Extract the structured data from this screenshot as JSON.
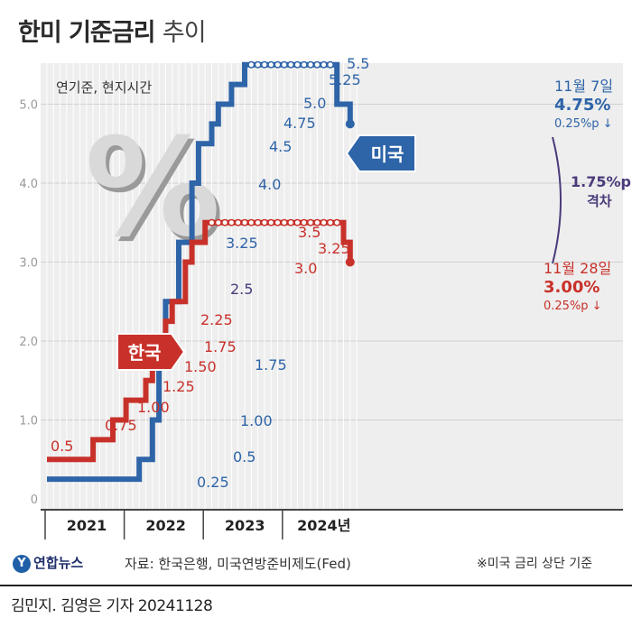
{
  "title": {
    "main": "한미 기준금리",
    "sub": "추이"
  },
  "credit": "김민지. 김영은 기자  20241128",
  "logo_text": "연합뉴스",
  "source": "자료: 한국은행, 미국연방준비제도(Fed)",
  "note": "※미국 금리 상단 기준",
  "colors": {
    "us": "#2e64a8",
    "korea": "#c8312a",
    "gap": "#4a3a7a",
    "grid": "#cfcfcf"
  },
  "chart_data": {
    "type": "line",
    "step": true,
    "unit_label": "연기준, 현지시간",
    "x_labels": [
      "2021",
      "2022",
      "2023",
      "2024년"
    ],
    "ylim": [
      0,
      5.5
    ],
    "yticks": [
      0,
      1.0,
      2.0,
      3.0,
      4.0,
      5.0
    ],
    "ytick_labels": [
      "0",
      "1.0",
      "2.0",
      "3.0",
      "4.0",
      "5.0"
    ],
    "series": [
      {
        "key": "us",
        "name": "미국",
        "points": [
          [
            "2021-01",
            0.25
          ],
          [
            "2022-03",
            0.5
          ],
          [
            "2022-05",
            1.0
          ],
          [
            "2022-06",
            1.75
          ],
          [
            "2022-07",
            2.5
          ],
          [
            "2022-09",
            3.25
          ],
          [
            "2022-11",
            4.0
          ],
          [
            "2022-12",
            4.5
          ],
          [
            "2023-02",
            4.75
          ],
          [
            "2023-03",
            5.0
          ],
          [
            "2023-05",
            5.25
          ],
          [
            "2023-07",
            5.5
          ],
          [
            "2024-09",
            5.0
          ],
          [
            "2024-11",
            4.75
          ]
        ],
        "labels": [
          "0.25",
          "0.5",
          "1.00",
          "1.75",
          "2.5",
          "3.25",
          "4.0",
          "4.5",
          "4.75",
          "5.0",
          "5.25",
          "5.5"
        ],
        "end": {
          "date": "11월 7일",
          "value": "4.75%",
          "change": "0.25%p ↓"
        }
      },
      {
        "key": "korea",
        "name": "한국",
        "points": [
          [
            "2021-01",
            0.5
          ],
          [
            "2021-08",
            0.75
          ],
          [
            "2021-11",
            1.0
          ],
          [
            "2022-01",
            1.25
          ],
          [
            "2022-04",
            1.5
          ],
          [
            "2022-05",
            1.75
          ],
          [
            "2022-07",
            2.25
          ],
          [
            "2022-08",
            2.5
          ],
          [
            "2022-10",
            3.0
          ],
          [
            "2022-11",
            3.25
          ],
          [
            "2023-01",
            3.5
          ],
          [
            "2024-10",
            3.25
          ],
          [
            "2024-11",
            3.0
          ]
        ],
        "labels": [
          "0.5",
          "0.75",
          "1.00",
          "1.25",
          "1.50",
          "1.75",
          "2.25",
          "3.0",
          "3.25",
          "3.5"
        ],
        "end": {
          "date": "11월 28일",
          "value": "3.00%",
          "change": "0.25%p ↓"
        }
      }
    ],
    "gap_annotation": {
      "value": "1.75%p",
      "label": "격차"
    }
  }
}
